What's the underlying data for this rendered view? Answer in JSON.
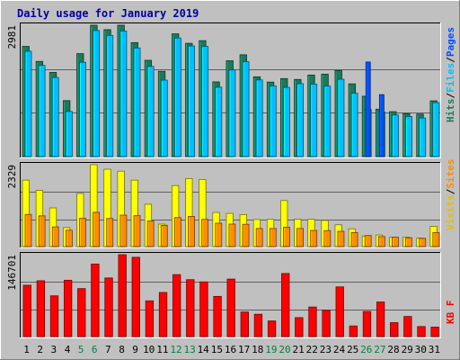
{
  "title": "Daily usage for January 2019",
  "colors": {
    "outer_bg": "#c0c0c0",
    "plot_bg": "#c0c0c0",
    "weekday": "#000000",
    "weekend": "#008040",
    "hits": "#1a7a5a",
    "files": "#00c0ff",
    "pages": "#0050ff",
    "visits": "#ffff00",
    "sites": "#ff8c00",
    "kbytes": "#ff0000"
  },
  "legend": {
    "top": [
      {
        "text": "Hits",
        "color": "#1a7a5a"
      },
      {
        "text": "/",
        "color": "#000000"
      },
      {
        "text": "Files",
        "color": "#00c0ff"
      },
      {
        "text": "/",
        "color": "#000000"
      },
      {
        "text": "Pages",
        "color": "#0050ff"
      }
    ],
    "middle": [
      {
        "text": "Visits",
        "color": "#e0c000"
      },
      {
        "text": "/",
        "color": "#000000"
      },
      {
        "text": "Sites",
        "color": "#ff8c00"
      }
    ],
    "bottom": [
      {
        "text": "KB F",
        "color": "#ff0000"
      }
    ]
  },
  "chart_data": {
    "type": "bar",
    "title": "Daily usage for January 2019",
    "x": [
      "1",
      "2",
      "3",
      "4",
      "5",
      "6",
      "7",
      "8",
      "9",
      "10",
      "11",
      "12",
      "13",
      "14",
      "15",
      "16",
      "17",
      "18",
      "19",
      "20",
      "21",
      "22",
      "23",
      "24",
      "25",
      "26",
      "27",
      "28",
      "29",
      "30",
      "31"
    ],
    "weekend_days": [
      "5",
      "6",
      "12",
      "13",
      "19",
      "20",
      "26",
      "27"
    ],
    "panels": [
      {
        "ymax_label": "2981",
        "ylim": [
          0,
          2981
        ],
        "series": [
          {
            "name": "Hits",
            "values": [
              2500,
              2160,
              1910,
              1270,
              2335,
              2981,
              2880,
              2981,
              2585,
              2185,
              1935,
              2785,
              2570,
              2630,
              1695,
              2175,
              2310,
              1810,
              1690,
              1770,
              1750,
              1850,
              1870,
              1955,
              1650,
              1370,
              1075,
              1020,
              975,
              965,
              1265
            ]
          },
          {
            "name": "Files",
            "values": [
              2390,
              2070,
              1795,
              1025,
              2140,
              2860,
              2750,
              2850,
              2465,
              2045,
              1735,
              2690,
              2510,
              2500,
              1575,
              1965,
              2155,
              1740,
              1605,
              1570,
              1655,
              1645,
              1600,
              1755,
              1440,
              1070,
              1015,
              945,
              910,
              875,
              1225
            ]
          },
          {
            "name": "Pages",
            "values": [
              0,
              0,
              0,
              0,
              0,
              0,
              0,
              0,
              0,
              0,
              0,
              0,
              0,
              0,
              0,
              0,
              0,
              0,
              0,
              0,
              0,
              0,
              0,
              0,
              0,
              2145,
              1405,
              0,
              0,
              0,
              0
            ]
          }
        ]
      },
      {
        "ymax_label": "2329",
        "ylim": [
          0,
          2329
        ],
        "series": [
          {
            "name": "Visits",
            "values": [
              1890,
              1600,
              1100,
              540,
              1510,
              2329,
              2200,
              2145,
              1890,
              1205,
              640,
              1735,
              1935,
              1910,
              970,
              945,
              910,
              770,
              775,
              1310,
              780,
              780,
              745,
              620,
              505,
              300,
              330,
              265,
              270,
              240,
              575
            ]
          },
          {
            "name": "Sites",
            "values": [
              915,
              875,
              560,
              465,
              805,
              975,
              800,
              895,
              880,
              730,
              605,
              825,
              860,
              775,
              665,
              640,
              635,
              515,
              515,
              550,
              515,
              460,
              455,
              435,
              400,
              315,
              285,
              270,
              250,
              235,
              400
            ]
          }
        ]
      },
      {
        "ymax_label": "146701",
        "ylim": [
          0,
          146701
        ],
        "series": [
          {
            "name": "KB F",
            "values": [
              92000,
              100000,
              73000,
              101000,
              86000,
              130000,
              105000,
              146701,
              142000,
              64000,
              79000,
              111000,
              102000,
              98000,
              72000,
              103000,
              44000,
              40000,
              28000,
              113000,
              34000,
              53000,
              47000,
              89000,
              19000,
              45000,
              62000,
              25000,
              36000,
              18000,
              17000
            ]
          }
        ]
      }
    ]
  }
}
